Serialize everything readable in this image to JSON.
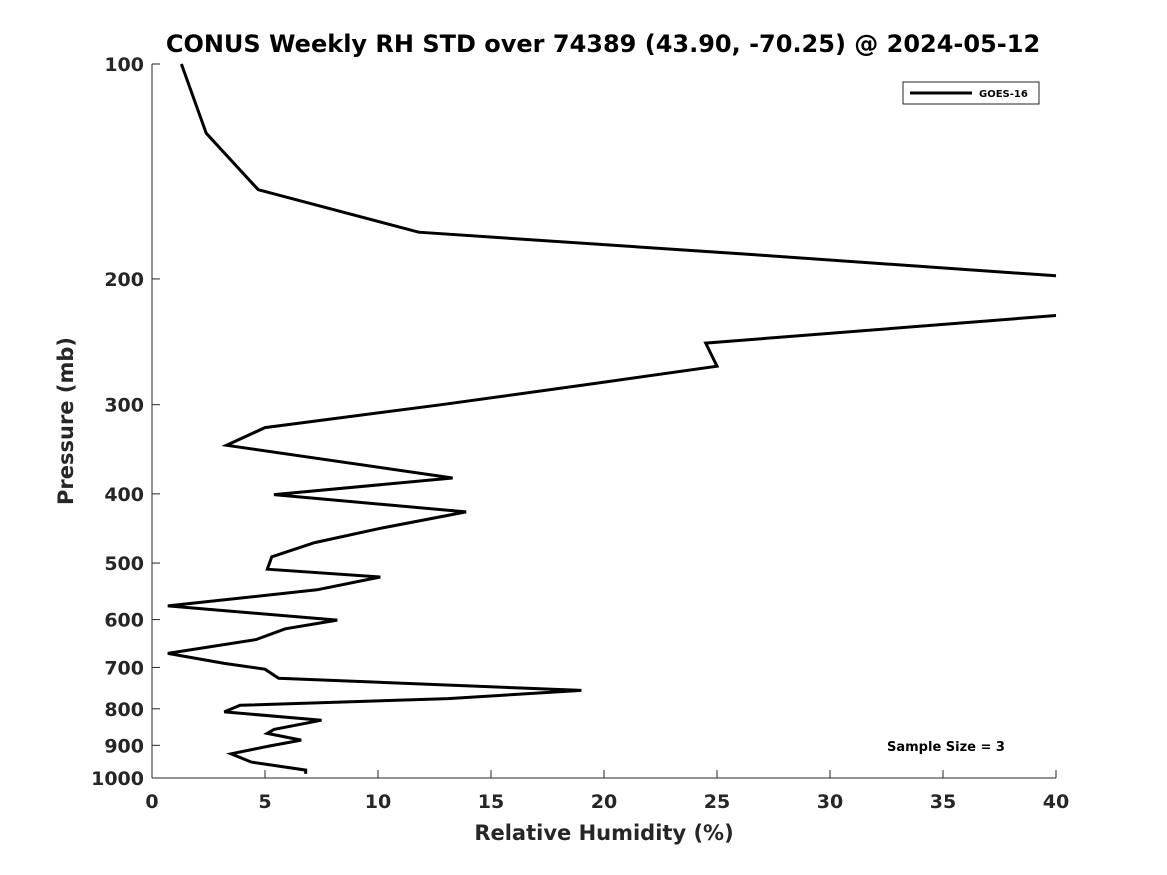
{
  "chart_data": {
    "type": "line",
    "title": "CONUS Weekly RH STD over 74389 (43.90, -70.25) @ 2024-05-12",
    "xlabel": "Relative Humidity (%)",
    "ylabel": "Pressure (mb)",
    "xlim": [
      0,
      40
    ],
    "ylim": [
      1000,
      100
    ],
    "yscale": "log",
    "y_reversed": true,
    "grid": false,
    "xticks": [
      "0",
      "5",
      "10",
      "15",
      "20",
      "25",
      "30",
      "35",
      "40"
    ],
    "yticks": [
      "100",
      "200",
      "300",
      "400",
      "500",
      "600",
      "700",
      "800",
      "900",
      "1000"
    ],
    "legend": {
      "position": "top-right",
      "entries": [
        "GOES-16"
      ]
    },
    "annotation": "Sample Size = 3",
    "line_color": "#000000",
    "series": [
      {
        "name": "GOES-16",
        "x": [
          1.3,
          2.4,
          4.7,
          11.8,
          26.7,
          40.0,
          null,
          40.0,
          24.5,
          25.0,
          19.3,
          12.8,
          5.0,
          3.3,
          13.3,
          5.4,
          13.9,
          10.1,
          7.2,
          5.3,
          5.1,
          10.1,
          7.3,
          0.7,
          8.2,
          5.9,
          4.6,
          0.7,
          3.2,
          5.0,
          5.6,
          19.0,
          13.1,
          3.9,
          3.2,
          7.5,
          5.4,
          5.1,
          6.6,
          5.2,
          3.5,
          4.4,
          6.8,
          6.8
        ],
        "y": [
          100,
          125,
          150,
          172,
          185,
          198,
          null,
          225,
          246,
          265,
          281,
          300,
          323,
          342,
          380,
          401,
          424,
          447,
          468,
          490,
          510,
          523,
          545,
          574,
          601,
          618,
          640,
          669,
          691,
          704,
          725,
          754,
          774,
          791,
          808,
          830,
          855,
          866,
          885,
          902,
          925,
          950,
          975,
          987
        ]
      }
    ]
  }
}
